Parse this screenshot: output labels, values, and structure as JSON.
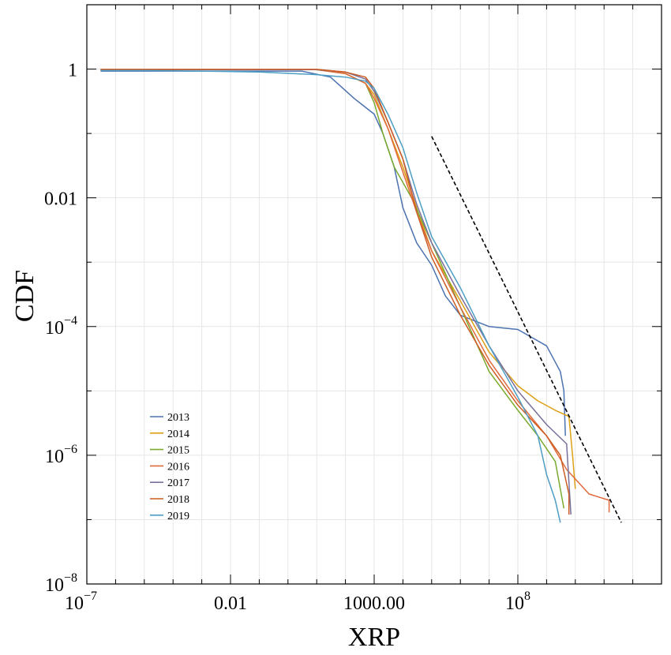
{
  "chart_data": {
    "type": "line",
    "xlabel": "XRP",
    "ylabel": "CDF",
    "xscale": "log",
    "yscale": "log",
    "xlim": [
      1e-07,
      10000000000000.0
    ],
    "ylim": [
      1e-08,
      10
    ],
    "grid": true,
    "legend_position": "bottom-left",
    "x_ticks": [
      {
        "value": 1e-07,
        "label": "10",
        "sup": "−7"
      },
      {
        "value": 0.01,
        "label": "0.01",
        "sup": ""
      },
      {
        "value": 1000,
        "label": "1000.00",
        "sup": ""
      },
      {
        "value": 100000000.0,
        "label": "10",
        "sup": "8"
      }
    ],
    "y_ticks": [
      {
        "value": 1e-08,
        "label": "10",
        "sup": "−8"
      },
      {
        "value": 1e-06,
        "label": "10",
        "sup": "−6"
      },
      {
        "value": 0.0001,
        "label": "10",
        "sup": "−4"
      },
      {
        "value": 0.01,
        "label": "0.01",
        "sup": ""
      },
      {
        "value": 1,
        "label": "1",
        "sup": ""
      }
    ],
    "series": [
      {
        "name": "2013",
        "color": "#4c72b0",
        "points": [
          [
            3e-07,
            0.93
          ],
          [
            1e-05,
            0.93
          ],
          [
            0.001,
            0.93
          ],
          [
            0.1,
            0.93
          ],
          [
            3,
            0.93
          ],
          [
            30,
            0.75
          ],
          [
            200,
            0.35
          ],
          [
            1000,
            0.2
          ],
          [
            2000.0,
            0.1
          ],
          [
            5000.0,
            0.03
          ],
          [
            10000.0,
            0.007
          ],
          [
            30000.0,
            0.002
          ],
          [
            100000.0,
            0.0009
          ],
          [
            300000.0,
            0.0003
          ],
          [
            1000000.0,
            0.00015
          ],
          [
            10000000.0,
            0.0001
          ],
          [
            100000000.0,
            9e-05
          ],
          [
            1000000000.0,
            5e-05
          ],
          [
            3000000000.0,
            2e-05
          ],
          [
            4000000000.0,
            1e-05
          ],
          [
            4500000000.0,
            2e-06
          ]
        ]
      },
      {
        "name": "2014",
        "color": "#dda015",
        "points": [
          [
            3e-07,
            0.98
          ],
          [
            1e-05,
            0.98
          ],
          [
            0.001,
            0.98
          ],
          [
            0.1,
            0.98
          ],
          [
            10,
            0.98
          ],
          [
            100,
            0.85
          ],
          [
            500,
            0.6
          ],
          [
            1000,
            0.4
          ],
          [
            3000.0,
            0.12
          ],
          [
            10000.0,
            0.03
          ],
          [
            30000.0,
            0.007
          ],
          [
            100000.0,
            0.0015
          ],
          [
            1000000.0,
            0.00025
          ],
          [
            10000000.0,
            4e-05
          ],
          [
            100000000.0,
            1.2e-05
          ],
          [
            500000000.0,
            7e-06
          ],
          [
            2000000000.0,
            5e-06
          ],
          [
            6000000000.0,
            4e-06
          ],
          [
            8000000000.0,
            1e-06
          ],
          [
            10000000000.0,
            3e-07
          ]
        ]
      },
      {
        "name": "2015",
        "color": "#7aaa2e",
        "points": [
          [
            3e-07,
            0.98
          ],
          [
            1e-05,
            0.98
          ],
          [
            0.001,
            0.98
          ],
          [
            0.1,
            0.98
          ],
          [
            10,
            0.98
          ],
          [
            100,
            0.85
          ],
          [
            500,
            0.6
          ],
          [
            1000,
            0.3
          ],
          [
            2000.0,
            0.1
          ],
          [
            5000.0,
            0.03
          ],
          [
            20000.0,
            0.01
          ],
          [
            100000.0,
            0.002
          ],
          [
            1000000.0,
            0.0002
          ],
          [
            10000000.0,
            2e-05
          ],
          [
            100000000.0,
            5e-06
          ],
          [
            500000000.0,
            2e-06
          ],
          [
            2000000000.0,
            8e-07
          ],
          [
            4000000000.0,
            1.5e-07
          ]
        ]
      },
      {
        "name": "2016",
        "color": "#e06a3b",
        "points": [
          [
            3e-07,
            0.98
          ],
          [
            1e-05,
            0.98
          ],
          [
            0.001,
            0.98
          ],
          [
            0.1,
            0.98
          ],
          [
            10,
            0.98
          ],
          [
            100,
            0.85
          ],
          [
            500,
            0.6
          ],
          [
            1000,
            0.35
          ],
          [
            3000.0,
            0.12
          ],
          [
            10000.0,
            0.025
          ],
          [
            30000.0,
            0.006
          ],
          [
            100000.0,
            0.0015
          ],
          [
            1000000.0,
            0.0002
          ],
          [
            10000000.0,
            3e-05
          ],
          [
            100000000.0,
            7e-06
          ],
          [
            1000000000.0,
            2e-06
          ],
          [
            5000000000.0,
            6e-07
          ],
          [
            30000000000.0,
            2.5e-07
          ],
          [
            150000000000.0,
            2e-07
          ],
          [
            150000000000.0,
            1.3e-07
          ]
        ]
      },
      {
        "name": "2017",
        "color": "#7a6e9a",
        "points": [
          [
            3e-07,
            0.98
          ],
          [
            1e-05,
            0.98
          ],
          [
            0.001,
            0.98
          ],
          [
            0.1,
            0.98
          ],
          [
            10,
            0.98
          ],
          [
            100,
            0.9
          ],
          [
            500,
            0.7
          ],
          [
            1000,
            0.45
          ],
          [
            3000.0,
            0.15
          ],
          [
            10000.0,
            0.04
          ],
          [
            30000.0,
            0.008
          ],
          [
            100000.0,
            0.002
          ],
          [
            1000000.0,
            0.0003
          ],
          [
            10000000.0,
            5e-05
          ],
          [
            100000000.0,
            1e-05
          ],
          [
            1000000000.0,
            3e-06
          ],
          [
            5000000000.0,
            1.5e-06
          ],
          [
            7000000000.0,
            1.2e-07
          ]
        ]
      },
      {
        "name": "2018",
        "color": "#cc5c22",
        "points": [
          [
            3e-07,
            0.99
          ],
          [
            1e-05,
            0.99
          ],
          [
            0.001,
            0.99
          ],
          [
            0.1,
            0.99
          ],
          [
            10,
            0.99
          ],
          [
            100,
            0.9
          ],
          [
            500,
            0.75
          ],
          [
            1000,
            0.5
          ],
          [
            3000.0,
            0.15
          ],
          [
            10000.0,
            0.04
          ],
          [
            30000.0,
            0.006
          ],
          [
            100000.0,
            0.0012
          ],
          [
            1000000.0,
            0.00015
          ],
          [
            10000000.0,
            2.5e-05
          ],
          [
            100000000.0,
            6e-06
          ],
          [
            1000000000.0,
            2e-06
          ],
          [
            3000000000.0,
            1e-06
          ],
          [
            6000000000.0,
            2.5e-07
          ],
          [
            6000000000.0,
            1.2e-07
          ]
        ]
      },
      {
        "name": "2019",
        "color": "#4d9ec4",
        "points": [
          [
            3e-07,
            0.95
          ],
          [
            1e-05,
            0.95
          ],
          [
            0.001,
            0.93
          ],
          [
            0.1,
            0.9
          ],
          [
            10,
            0.82
          ],
          [
            100,
            0.75
          ],
          [
            500,
            0.65
          ],
          [
            1000,
            0.5
          ],
          [
            3000.0,
            0.2
          ],
          [
            10000.0,
            0.06
          ],
          [
            30000.0,
            0.012
          ],
          [
            100000.0,
            0.0025
          ],
          [
            1000000.0,
            0.0004
          ],
          [
            10000000.0,
            5e-05
          ],
          [
            100000000.0,
            8e-06
          ],
          [
            500000000.0,
            2e-06
          ],
          [
            1000000000.0,
            5e-07
          ],
          [
            2000000000.0,
            2e-07
          ],
          [
            3000000000.0,
            9e-08
          ]
        ]
      },
      {
        "name": "",
        "color": "#000000",
        "dashed": true,
        "points": [
          [
            100000.0,
            0.09
          ],
          [
            400000000000.0,
            9e-08
          ]
        ]
      }
    ]
  }
}
